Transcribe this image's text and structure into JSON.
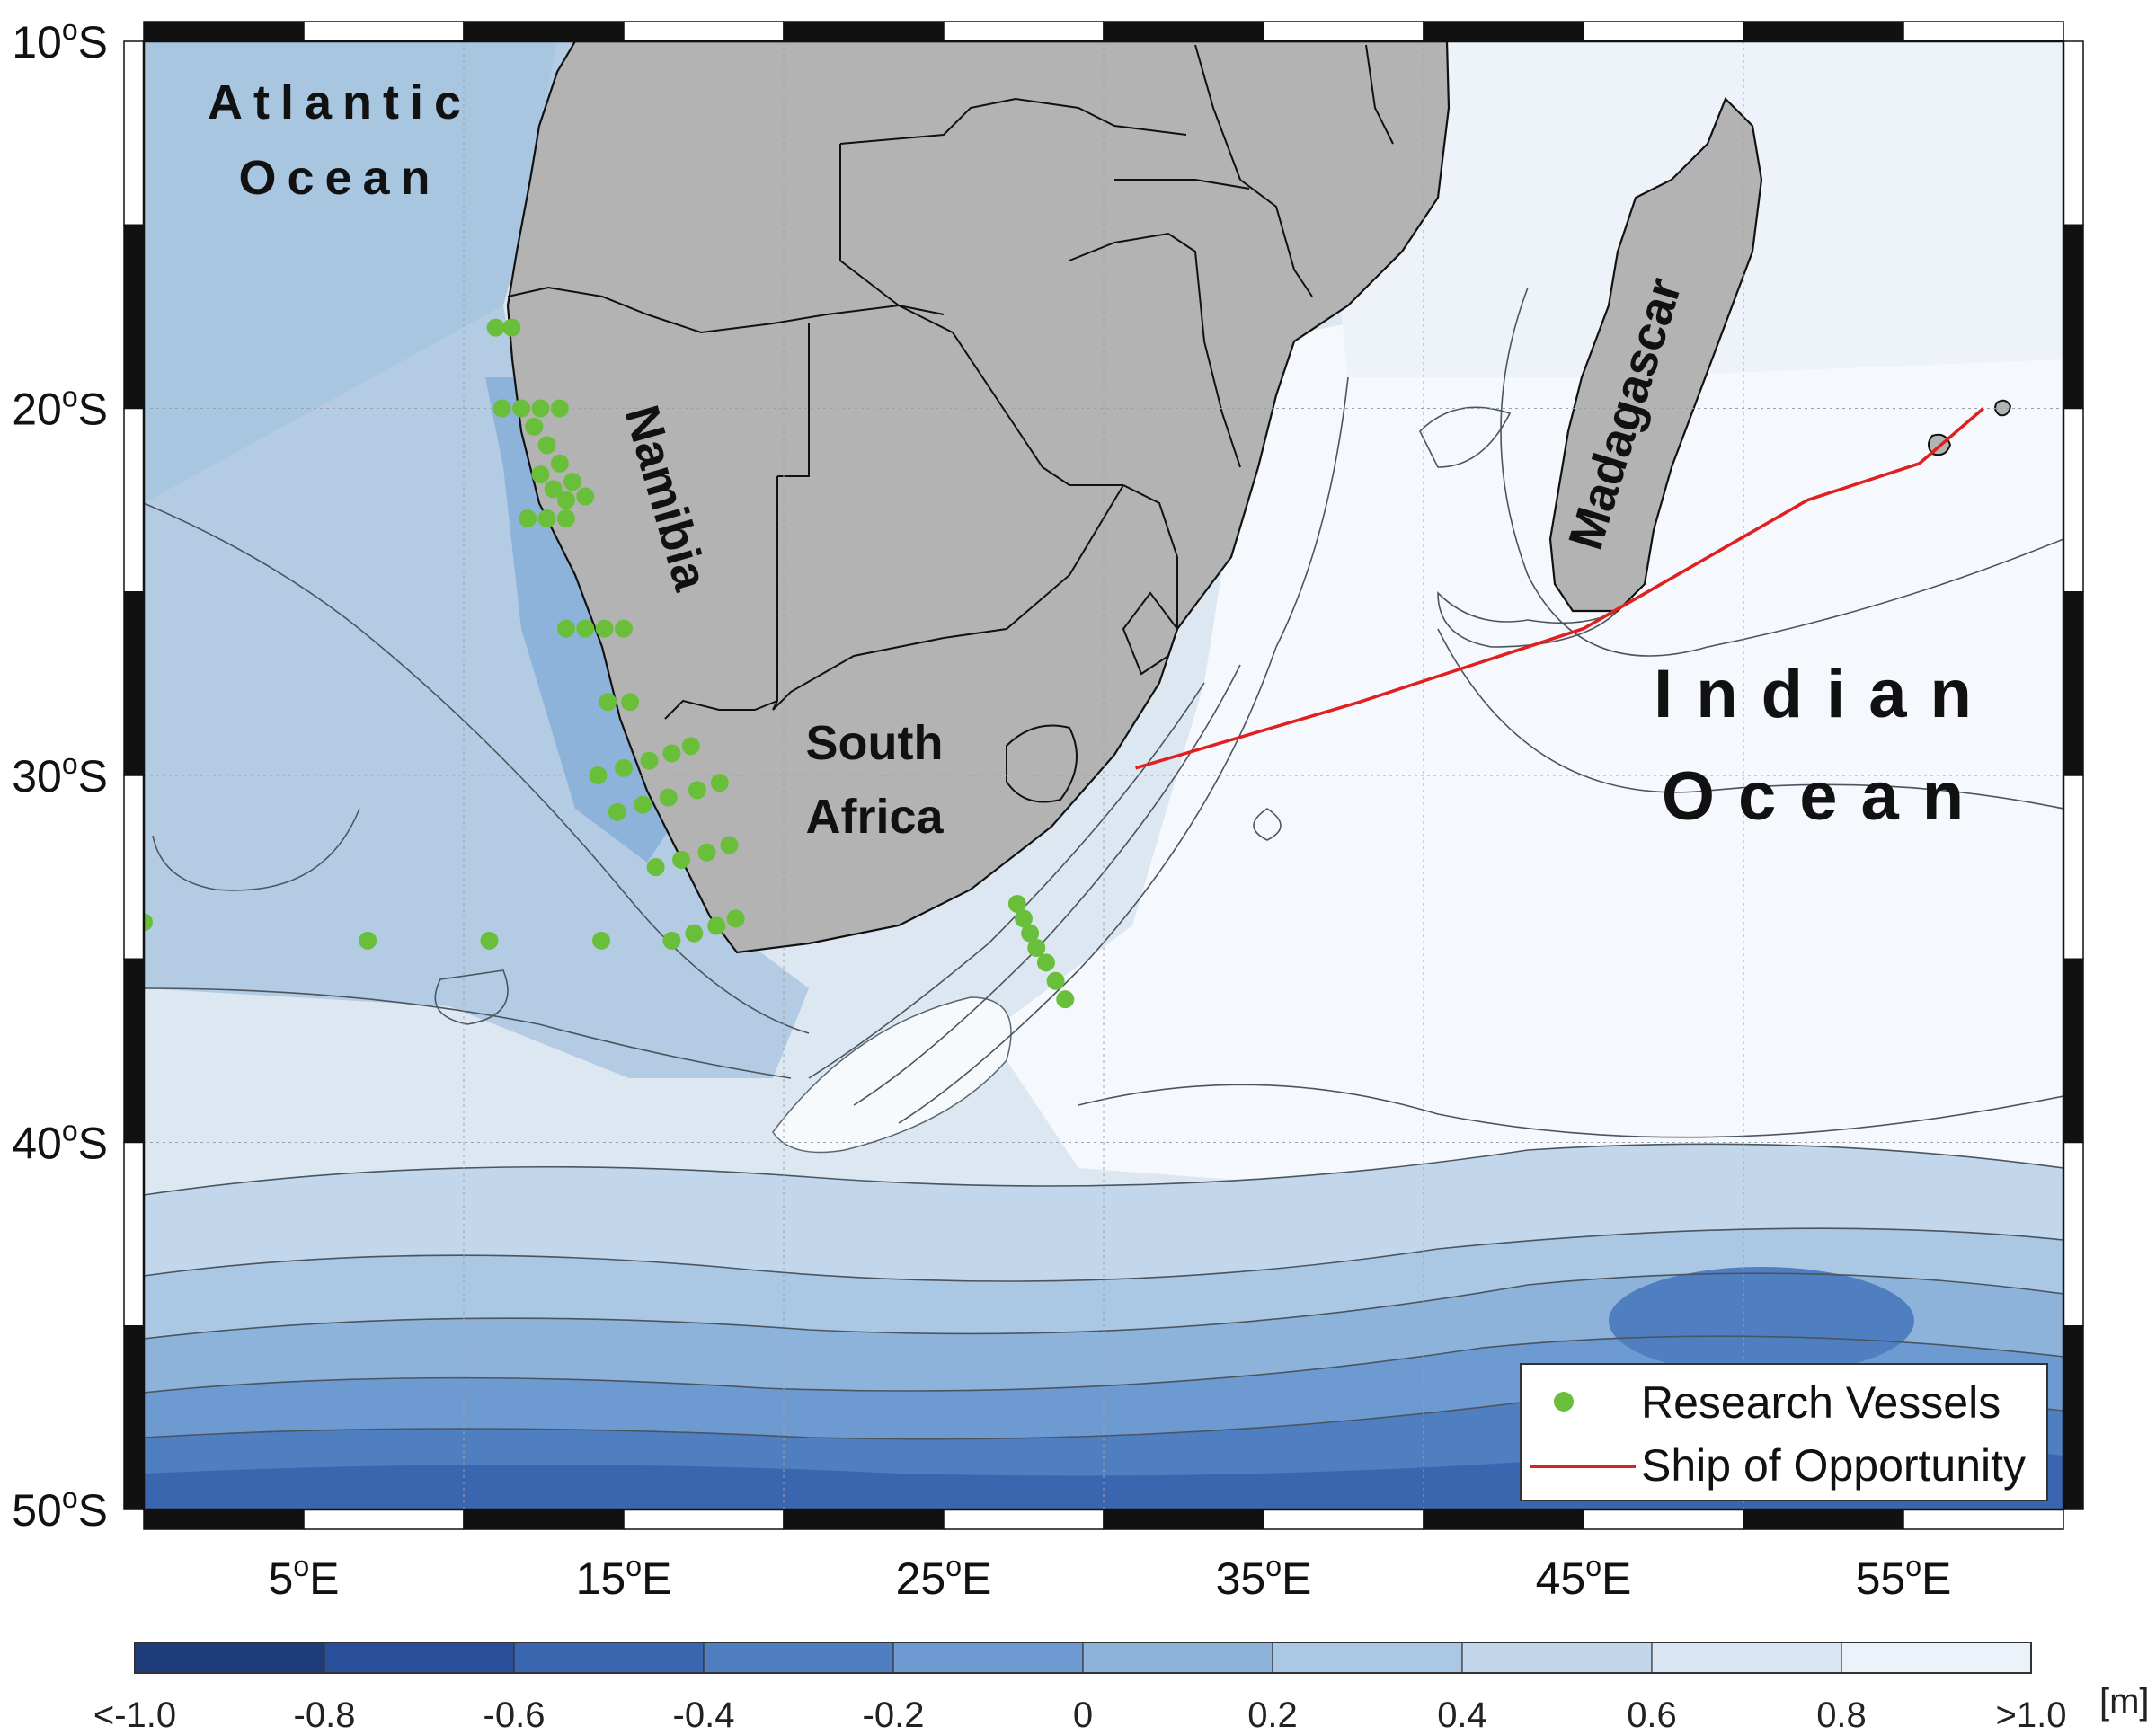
{
  "map": {
    "lon_range": [
      0,
      60
    ],
    "lat_range": [
      -50,
      -10
    ],
    "x_ticks": [
      {
        "lon": 5,
        "label": "5",
        "hemi": "E"
      },
      {
        "lon": 15,
        "label": "15",
        "hemi": "E"
      },
      {
        "lon": 25,
        "label": "25",
        "hemi": "E"
      },
      {
        "lon": 35,
        "label": "35",
        "hemi": "E"
      },
      {
        "lon": 45,
        "label": "45",
        "hemi": "E"
      },
      {
        "lon": 55,
        "label": "55",
        "hemi": "E"
      }
    ],
    "y_ticks": [
      {
        "lat": -10,
        "label": "10",
        "hemi": "S"
      },
      {
        "lat": -20,
        "label": "20",
        "hemi": "S"
      },
      {
        "lat": -30,
        "label": "30",
        "hemi": "S"
      },
      {
        "lat": -40,
        "label": "40",
        "hemi": "S"
      },
      {
        "lat": -50,
        "label": "50",
        "hemi": "S"
      }
    ],
    "degree_symbol": "o",
    "labels": {
      "atlantic_line1": "Atlantic",
      "atlantic_line2": "Ocean",
      "indian_line1": "Indian",
      "indian_line2": "Ocean",
      "namibia": "Namibia",
      "south_africa_line1": "South",
      "south_africa_line2": "Africa",
      "madagascar": "Madagascar"
    },
    "colors": {
      "land": "#b3b3b3",
      "research_vessels": "#6abf3a",
      "ship_of_opportunity": "#e02020"
    },
    "research_vessel_stations": [
      [
        11.0,
        -17.8
      ],
      [
        11.5,
        -17.8
      ],
      [
        11.2,
        -20.0
      ],
      [
        11.8,
        -20.0
      ],
      [
        12.4,
        -20.0
      ],
      [
        13.0,
        -20.0
      ],
      [
        12.2,
        -20.5
      ],
      [
        12.6,
        -21.0
      ],
      [
        13.0,
        -21.5
      ],
      [
        13.4,
        -22.0
      ],
      [
        13.8,
        -22.4
      ],
      [
        12.4,
        -21.8
      ],
      [
        12.8,
        -22.2
      ],
      [
        13.2,
        -22.5
      ],
      [
        12.0,
        -23.0
      ],
      [
        12.6,
        -23.0
      ],
      [
        13.2,
        -23.0
      ],
      [
        13.2,
        -26.0
      ],
      [
        13.8,
        -26.0
      ],
      [
        14.4,
        -26.0
      ],
      [
        15.0,
        -26.0
      ],
      [
        14.5,
        -28.0
      ],
      [
        15.2,
        -28.0
      ],
      [
        14.2,
        -30.0
      ],
      [
        15.0,
        -29.8
      ],
      [
        15.8,
        -29.6
      ],
      [
        16.5,
        -29.4
      ],
      [
        17.1,
        -29.2
      ],
      [
        14.8,
        -31.0
      ],
      [
        15.6,
        -30.8
      ],
      [
        16.4,
        -30.6
      ],
      [
        17.3,
        -30.4
      ],
      [
        18.0,
        -30.2
      ],
      [
        16.0,
        -32.5
      ],
      [
        16.8,
        -32.3
      ],
      [
        17.6,
        -32.1
      ],
      [
        18.3,
        -31.9
      ],
      [
        16.5,
        -34.5
      ],
      [
        17.2,
        -34.3
      ],
      [
        17.9,
        -34.1
      ],
      [
        18.5,
        -33.9
      ],
      [
        0.0,
        -34.0
      ],
      [
        7.0,
        -34.5
      ],
      [
        10.8,
        -34.5
      ],
      [
        14.3,
        -34.5
      ],
      [
        27.3,
        -33.5
      ],
      [
        27.5,
        -33.9
      ],
      [
        27.7,
        -34.3
      ],
      [
        27.9,
        -34.7
      ],
      [
        28.2,
        -35.1
      ],
      [
        28.5,
        -35.6
      ],
      [
        28.8,
        -36.1
      ]
    ],
    "ship_of_opportunity_track": [
      [
        31.0,
        -29.8
      ],
      [
        38.0,
        -28.0
      ],
      [
        45.0,
        -26.0
      ],
      [
        48.0,
        -24.5
      ],
      [
        52.0,
        -22.5
      ],
      [
        55.5,
        -21.5
      ],
      [
        57.5,
        -20.0
      ]
    ]
  },
  "legend": {
    "items": [
      {
        "label": "Research Vessels",
        "kind": "marker",
        "color": "#6abf3a"
      },
      {
        "label": "Ship of Opportunity",
        "kind": "line",
        "color": "#e02020"
      }
    ]
  },
  "colorbar": {
    "tick_labels": [
      "<-1.0",
      "-0.8",
      "-0.6",
      "-0.4",
      "-0.2",
      "0",
      "0.2",
      "0.4",
      "0.6",
      "0.8",
      ">1.0"
    ],
    "unit": "[m]",
    "colors": [
      "#1f3c7a",
      "#2b509b",
      "#3a66b0",
      "#4f7fc0",
      "#6d9ad0",
      "#8db3db",
      "#aac7e3",
      "#c3d7ec",
      "#d9e5f3",
      "#ecf2f9"
    ]
  }
}
